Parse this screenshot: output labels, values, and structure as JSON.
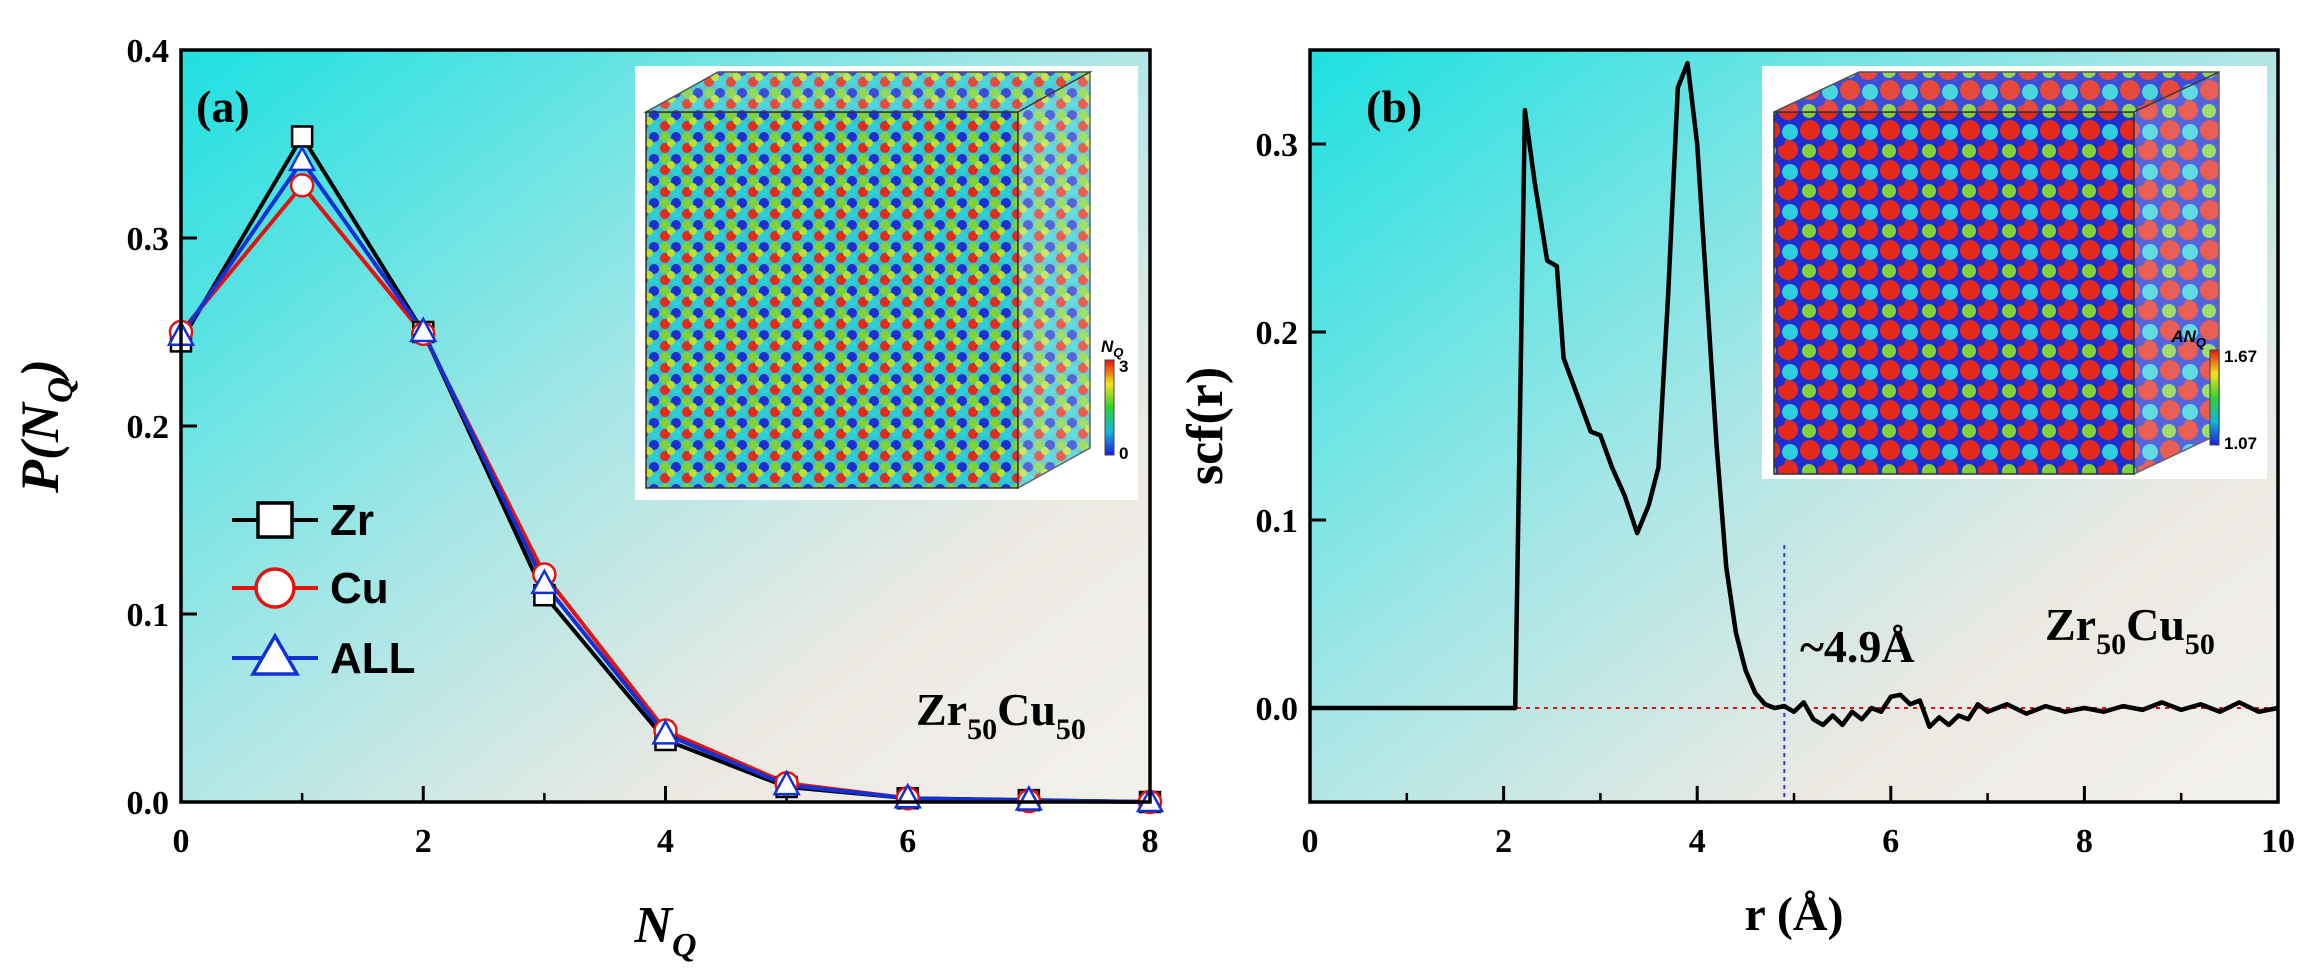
{
  "chart_data": [
    {
      "type": "line",
      "panel_label": "(a)",
      "xlabel": "N",
      "xlabel_sub": "Q",
      "ylabel_pre": "P(N",
      "ylabel_sub": "Q",
      "ylabel_post": ")",
      "xlim": [
        0,
        8
      ],
      "ylim": [
        0,
        0.4
      ],
      "xticks": [
        0,
        2,
        4,
        6,
        8
      ],
      "yticks": [
        0.0,
        0.1,
        0.2,
        0.3,
        0.4
      ],
      "ytick_labels": [
        "0.0",
        "0.1",
        "0.2",
        "0.3",
        "0.4"
      ],
      "x": [
        0,
        1,
        2,
        3,
        4,
        5,
        6,
        7,
        8
      ],
      "series": [
        {
          "name": "Zr",
          "color": "#000000",
          "marker": "square",
          "values": [
            0.245,
            0.354,
            0.25,
            0.11,
            0.033,
            0.008,
            0.002,
            0.001,
            0.0
          ]
        },
        {
          "name": "Cu",
          "color": "#e3140f",
          "marker": "circle",
          "values": [
            0.25,
            0.328,
            0.249,
            0.121,
            0.038,
            0.01,
            0.002,
            0.0005,
            0.0
          ]
        },
        {
          "name": "ALL",
          "color": "#1030d8",
          "marker": "triangle",
          "values": [
            0.248,
            0.341,
            0.25,
            0.116,
            0.036,
            0.009,
            0.002,
            0.0008,
            0.0
          ]
        }
      ],
      "annotation": {
        "base1": "Zr",
        "sub1": "50",
        "base2": "Cu",
        "sub2": "50"
      },
      "inset": {
        "colorbar_title": "N",
        "colorbar_title_sub": "Q",
        "colorbar_max": "3",
        "colorbar_min": "0"
      }
    },
    {
      "type": "line",
      "panel_label": "(b)",
      "xlabel": "r (Å)",
      "ylabel": "scf(r)",
      "xlim": [
        0,
        10
      ],
      "ylim": [
        -0.05,
        0.35
      ],
      "xticks": [
        0,
        2,
        4,
        6,
        8,
        10
      ],
      "yticks": [
        0.0,
        0.1,
        0.2,
        0.3
      ],
      "ytick_labels": [
        "0.0",
        "0.1",
        "0.2",
        "0.3"
      ],
      "series": [
        {
          "name": "scf",
          "color": "#000000",
          "x": [
            0,
            2.12,
            2.22,
            2.32,
            2.45,
            2.55,
            2.62,
            2.75,
            2.9,
            3.0,
            3.12,
            3.25,
            3.38,
            3.5,
            3.6,
            3.7,
            3.8,
            3.9,
            4.0,
            4.1,
            4.2,
            4.3,
            4.4,
            4.5,
            4.6,
            4.7,
            4.8,
            4.9,
            5.0,
            5.1,
            5.2,
            5.3,
            5.4,
            5.5,
            5.6,
            5.7,
            5.8,
            5.9,
            6.0,
            6.1,
            6.2,
            6.3,
            6.4,
            6.5,
            6.6,
            6.7,
            6.8,
            6.9,
            7.0,
            7.2,
            7.4,
            7.6,
            7.8,
            8.0,
            8.2,
            8.4,
            8.6,
            8.8,
            9.0,
            9.2,
            9.4,
            9.6,
            9.8,
            10.0
          ],
          "y": [
            0.0,
            0.0,
            0.318,
            0.28,
            0.238,
            0.235,
            0.186,
            0.168,
            0.147,
            0.145,
            0.128,
            0.113,
            0.093,
            0.108,
            0.128,
            0.22,
            0.33,
            0.343,
            0.3,
            0.22,
            0.14,
            0.075,
            0.04,
            0.02,
            0.008,
            0.002,
            0.0,
            0.001,
            -0.002,
            0.003,
            -0.006,
            -0.009,
            -0.004,
            -0.009,
            -0.002,
            -0.006,
            0.0,
            -0.002,
            0.006,
            0.007,
            0.002,
            0.004,
            -0.01,
            -0.005,
            -0.009,
            -0.004,
            -0.006,
            0.002,
            -0.002,
            0.002,
            -0.003,
            0.001,
            -0.002,
            0.0,
            -0.002,
            0.001,
            -0.001,
            0.003,
            -0.001,
            0.002,
            -0.002,
            0.003,
            -0.002,
            0.0
          ]
        }
      ],
      "marker_line_x": 4.9,
      "marker_text": "~4.9Å",
      "annotation": {
        "base1": "Zr",
        "sub1": "50",
        "base2": "Cu",
        "sub2": "50"
      },
      "inset": {
        "colorbar_title": "AN",
        "colorbar_title_sub": "Q",
        "colorbar_max": "1.67",
        "colorbar_min": "1.07"
      }
    }
  ]
}
